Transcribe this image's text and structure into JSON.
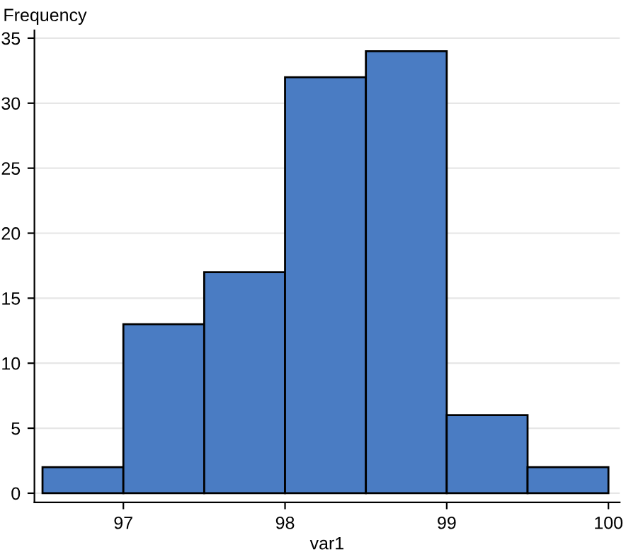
{
  "chart_data": {
    "type": "histogram",
    "xlabel": "var1",
    "ylabel": "Frequency",
    "bins": [
      96.5,
      97,
      97.5,
      98,
      98.5,
      99,
      99.5,
      100
    ],
    "values": [
      2,
      13,
      17,
      32,
      34,
      6,
      2
    ],
    "color": "#4a7cc3",
    "xlim": [
      96.45,
      100.07
    ],
    "xticks": [
      97,
      98,
      99,
      100
    ],
    "ylim": [
      -0.7,
      35.6
    ],
    "yticks": [
      0,
      5,
      10,
      15,
      20,
      25,
      30,
      35
    ],
    "grid": "y"
  }
}
